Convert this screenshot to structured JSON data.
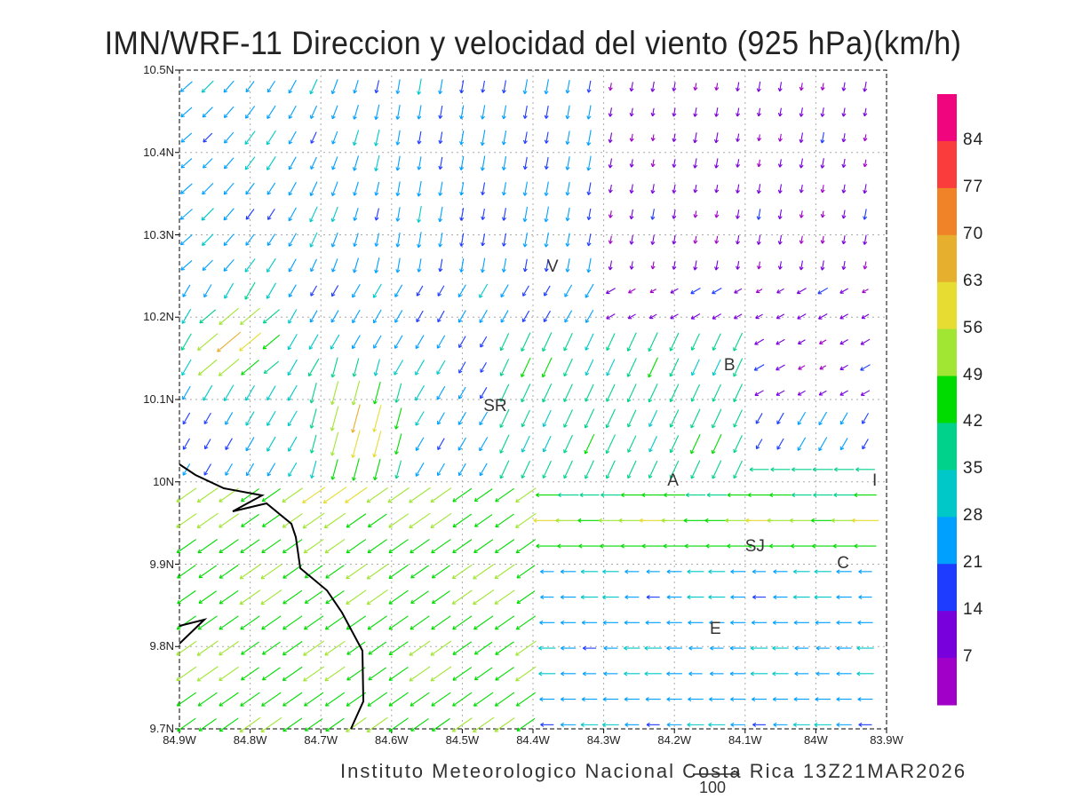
{
  "title": "IMN/WRF-11 Direccion y velocidad del viento (925 hPa)(km/h)",
  "credit": "Instituto Meteorologico Nacional Costa Rica  13Z21MAR2026",
  "reference_vector": {
    "label": "100",
    "value_kmh": 100
  },
  "axes": {
    "lat_ticks": [
      "10.5N",
      "10.4N",
      "10.3N",
      "10.2N",
      "10.1N",
      "10N",
      "9.9N",
      "9.8N",
      "9.7N"
    ],
    "lon_ticks": [
      "84.9W",
      "84.8W",
      "84.7W",
      "84.6W",
      "84.5W",
      "84.4W",
      "84.3W",
      "84.2W",
      "84.1W",
      "84W",
      "83.9W"
    ],
    "lat_range": [
      9.7,
      10.5
    ],
    "lon_range": [
      -84.9,
      -83.9
    ]
  },
  "colorbar": {
    "labels": [
      "84",
      "77",
      "70",
      "63",
      "56",
      "49",
      "42",
      "35",
      "28",
      "21",
      "14",
      "7"
    ],
    "colors": [
      "#f0057f",
      "#fa3c3c",
      "#f08228",
      "#e6af2d",
      "#e6dc32",
      "#a0e632",
      "#00dc00",
      "#00d28c",
      "#00c8c8",
      "#00a0ff",
      "#1e3cff",
      "#7800dc",
      "#a000c8"
    ]
  },
  "cities": [
    {
      "label": "V",
      "lon": -84.37,
      "lat": 10.26
    },
    {
      "label": "SR",
      "lon": -84.46,
      "lat": 10.09
    },
    {
      "label": "B",
      "lon": -84.12,
      "lat": 10.14
    },
    {
      "label": "A",
      "lon": -84.2,
      "lat": 10.0
    },
    {
      "label": "I",
      "lon": -83.91,
      "lat": 10.0
    },
    {
      "label": "SJ",
      "lon": -84.09,
      "lat": 9.92
    },
    {
      "label": "C",
      "lon": -83.96,
      "lat": 9.9
    },
    {
      "label": "E",
      "lon": -84.14,
      "lat": 9.82
    }
  ]
}
